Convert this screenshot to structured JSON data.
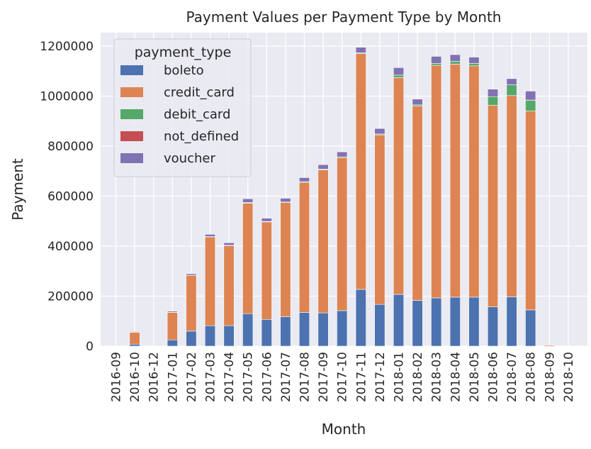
{
  "chart_data": {
    "type": "bar",
    "stacked": true,
    "title": "Payment Values per Payment Type by Month",
    "xlabel": "Month",
    "ylabel": "Payment",
    "ylim": [
      0,
      1250000
    ],
    "yticks": [
      "0",
      "200000",
      "400000",
      "600000",
      "800000",
      "1000000",
      "1200000"
    ],
    "grid": true,
    "legend_title": "payment_type",
    "legend_position": "top-left",
    "categories": [
      "2016-09",
      "2016-10",
      "2016-12",
      "2017-01",
      "2017-02",
      "2017-03",
      "2017-04",
      "2017-05",
      "2017-06",
      "2017-07",
      "2017-08",
      "2017-09",
      "2017-10",
      "2017-11",
      "2017-12",
      "2018-01",
      "2018-02",
      "2018-03",
      "2018-04",
      "2018-05",
      "2018-06",
      "2018-07",
      "2018-08",
      "2018-09",
      "2018-10"
    ],
    "series": [
      {
        "name": "boleto",
        "color": "#4c72b0",
        "values": [
          0,
          8000,
          0,
          25000,
          60000,
          82000,
          82000,
          130000,
          107000,
          118000,
          135000,
          133000,
          142000,
          227000,
          167000,
          207000,
          183000,
          193000,
          196000,
          196000,
          157000,
          197000,
          145000,
          0,
          0
        ]
      },
      {
        "name": "credit_card",
        "color": "#dd8452",
        "values": [
          200,
          48000,
          20,
          110000,
          223000,
          355000,
          320000,
          442000,
          390000,
          456000,
          520000,
          572000,
          612000,
          943000,
          678000,
          867000,
          777000,
          930000,
          932000,
          925000,
          806000,
          805000,
          795000,
          4000,
          500
        ]
      },
      {
        "name": "debit_card",
        "color": "#55a868",
        "values": [
          0,
          200,
          0,
          500,
          800,
          1200,
          1500,
          2500,
          1800,
          2500,
          3000,
          3000,
          3000,
          3500,
          3500,
          10000,
          5000,
          8000,
          11000,
          10000,
          35000,
          43000,
          44000,
          0,
          0
        ]
      },
      {
        "name": "not_defined",
        "color": "#c44e52",
        "values": [
          0,
          0,
          0,
          0,
          0,
          0,
          0,
          0,
          0,
          0,
          0,
          0,
          0,
          0,
          0,
          0,
          0,
          0,
          0,
          0,
          0,
          0,
          150,
          0,
          0
        ]
      },
      {
        "name": "voucher",
        "color": "#8172b3",
        "values": [
          0,
          2500,
          0,
          4500,
          6000,
          9000,
          10000,
          15000,
          13000,
          15000,
          16000,
          18000,
          20000,
          22000,
          22000,
          30000,
          23000,
          28000,
          27000,
          25000,
          30000,
          25000,
          36000,
          0,
          0
        ]
      }
    ]
  }
}
